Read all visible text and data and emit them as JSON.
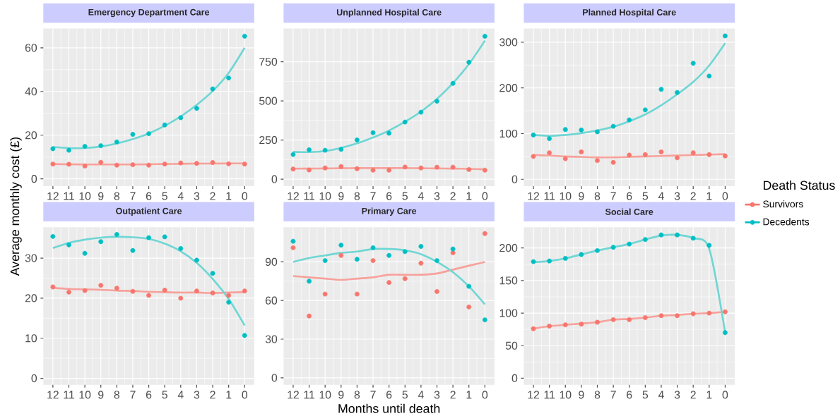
{
  "chart_data": [
    {
      "type": "scatter",
      "title": "Emergency Department Care",
      "ylabel": "Average monthly cost (£)",
      "categories": [
        "12",
        "11",
        "10",
        "9",
        "8",
        "7",
        "6",
        "5",
        "4",
        "3",
        "2",
        "1",
        "0"
      ],
      "ylim": [
        -3.3,
        68.8
      ],
      "yticks": [
        0,
        20,
        40,
        60
      ],
      "grid": true,
      "marker": "circle",
      "series": [
        {
          "color": "#f8766d",
          "values": [
            6.8,
            6.7,
            5.9,
            7.6,
            6.3,
            6.5,
            6.3,
            6.8,
            7.3,
            7.1,
            7.5,
            6.9,
            6.8
          ]
        },
        {
          "color": "#00bfc4",
          "values": [
            13.8,
            13.1,
            14.9,
            15.2,
            16.9,
            20.4,
            20.7,
            24.7,
            28.0,
            32.3,
            41.2,
            46.2,
            65.3
          ]
        },
        {
          "type": "line",
          "marker": "none",
          "color": "#f7a19b",
          "values": [
            6.8,
            6.7,
            6.6,
            6.6,
            6.6,
            6.6,
            6.7,
            6.8,
            6.9,
            7.0,
            7.0,
            7.1,
            7.1
          ]
        },
        {
          "type": "line",
          "marker": "none",
          "color": "#6fd6d4",
          "values": [
            14.6,
            14.1,
            14.1,
            14.8,
            16.2,
            18.2,
            20.8,
            24.3,
            28.6,
            33.9,
            40.2,
            48.5,
            60.0
          ]
        }
      ]
    },
    {
      "type": "scatter",
      "title": "Unplanned Hospital Care",
      "categories": [
        "12",
        "11",
        "10",
        "9",
        "8",
        "7",
        "6",
        "5",
        "4",
        "3",
        "2",
        "1",
        "0"
      ],
      "ylim": [
        -44,
        962
      ],
      "yticks": [
        0,
        250,
        500,
        750
      ],
      "grid": true,
      "marker": "circle",
      "series": [
        {
          "color": "#f8766d",
          "values": [
            65,
            59,
            72,
            81,
            67,
            58,
            58,
            78,
            72,
            77,
            77,
            62,
            58
          ]
        },
        {
          "color": "#00bfc4",
          "values": [
            158,
            188,
            185,
            191,
            251,
            297,
            294,
            365,
            428,
            498,
            612,
            747,
            913
          ]
        },
        {
          "type": "line",
          "marker": "none",
          "color": "#f7a19b",
          "values": [
            67,
            68,
            69,
            70,
            71,
            71,
            71,
            71,
            70,
            69,
            68,
            66,
            63
          ]
        },
        {
          "type": "line",
          "marker": "none",
          "color": "#6fd6d4",
          "values": [
            175,
            173,
            180,
            200,
            229,
            266,
            311,
            367,
            432,
            513,
            614,
            735,
            885
          ]
        }
      ]
    },
    {
      "type": "scatter",
      "title": "Planned Hospital Care",
      "legend_title": "Death Status",
      "legend": "right",
      "categories": [
        "12",
        "11",
        "10",
        "9",
        "8",
        "7",
        "6",
        "5",
        "4",
        "3",
        "2",
        "1",
        "0"
      ],
      "ylim": [
        -15,
        330
      ],
      "yticks": [
        0,
        100,
        200,
        300
      ],
      "grid": true,
      "marker": "circle",
      "series": [
        {
          "name": "Survivors",
          "color": "#f8766d",
          "values": [
            50,
            58,
            45,
            60,
            41,
            37,
            53,
            54,
            60,
            47,
            58,
            54,
            51
          ]
        },
        {
          "name": "Decedents",
          "color": "#00bfc4",
          "values": [
            97,
            89,
            109,
            108,
            104,
            116,
            130,
            152,
            197,
            190,
            254,
            226,
            314
          ]
        },
        {
          "type": "line",
          "marker": "none",
          "color": "#f7a19b",
          "values": [
            53,
            52,
            50,
            49,
            48,
            48,
            49,
            50,
            51,
            52,
            53,
            54,
            55
          ]
        },
        {
          "type": "line",
          "marker": "none",
          "color": "#6fd6d4",
          "values": [
            97,
            95,
            97,
            101,
            107,
            115,
            127,
            142,
            162,
            186,
            213,
            249,
            298
          ]
        }
      ]
    },
    {
      "type": "scatter",
      "title": "Outpatient Care",
      "categories": [
        "12",
        "11",
        "10",
        "9",
        "8",
        "7",
        "6",
        "5",
        "4",
        "3",
        "2",
        "1",
        "0"
      ],
      "ylim": [
        -1.6,
        37.7
      ],
      "yticks": [
        0,
        10,
        20,
        30
      ],
      "grid": true,
      "marker": "circle",
      "series": [
        {
          "color": "#f8766d",
          "values": [
            22.8,
            21.5,
            21.9,
            23.2,
            22.5,
            21.7,
            20.7,
            22.0,
            20.0,
            21.8,
            21.3,
            20.7,
            21.8
          ]
        },
        {
          "color": "#00bfc4",
          "values": [
            35.4,
            33.3,
            31.2,
            34.1,
            35.9,
            31.9,
            35.1,
            35.3,
            32.4,
            29.5,
            26.2,
            19.0,
            10.7
          ]
        },
        {
          "type": "line",
          "marker": "none",
          "color": "#f7a19b",
          "values": [
            22.6,
            22.3,
            22.2,
            22.1,
            21.9,
            21.8,
            21.6,
            21.5,
            21.4,
            21.4,
            21.3,
            21.4,
            21.5
          ]
        },
        {
          "type": "line",
          "marker": "none",
          "color": "#6fd6d4",
          "values": [
            32.5,
            33.8,
            34.6,
            35.1,
            35.3,
            35.2,
            34.8,
            33.6,
            31.7,
            28.8,
            24.8,
            19.8,
            13.2
          ]
        }
      ]
    },
    {
      "type": "scatter",
      "title": "Primary Care",
      "xlabel": "Months until death",
      "categories": [
        "12",
        "11",
        "10",
        "9",
        "8",
        "7",
        "6",
        "5",
        "4",
        "3",
        "2",
        "1",
        "0"
      ],
      "ylim": [
        -5.4,
        116.9
      ],
      "yticks": [
        0,
        30,
        60,
        90
      ],
      "grid": true,
      "marker": "circle",
      "series": [
        {
          "color": "#f8766d",
          "values": [
            101,
            48,
            65,
            95,
            65,
            91,
            74,
            77,
            89,
            67,
            97,
            55,
            112
          ]
        },
        {
          "color": "#00bfc4",
          "values": [
            106,
            75,
            91,
            103,
            92,
            101,
            95,
            98,
            102,
            91,
            100,
            71,
            45
          ]
        },
        {
          "type": "line",
          "marker": "none",
          "color": "#f7a19b",
          "values": [
            79,
            78,
            77,
            76,
            77,
            78,
            80,
            80,
            80,
            81,
            84,
            87,
            90
          ]
        },
        {
          "type": "line",
          "marker": "none",
          "color": "#6fd6d4",
          "values": [
            90,
            93,
            95,
            97,
            98,
            100,
            100,
            99,
            96,
            90,
            82,
            71,
            57
          ]
        }
      ]
    },
    {
      "type": "scatter",
      "title": "Social Care",
      "categories": [
        "12",
        "11",
        "10",
        "9",
        "8",
        "7",
        "6",
        "5",
        "4",
        "3",
        "2",
        "1",
        "0"
      ],
      "ylim": [
        -10,
        231.8
      ],
      "yticks": [
        0,
        50,
        100,
        150,
        200
      ],
      "grid": true,
      "marker": "circle",
      "series": [
        {
          "color": "#f8766d",
          "values": [
            76,
            80,
            82,
            83,
            86,
            90,
            90,
            93,
            96,
            96,
            99,
            100,
            102
          ]
        },
        {
          "color": "#00bfc4",
          "values": [
            179,
            180,
            184,
            190,
            196,
            201,
            206,
            213,
            220,
            220,
            215,
            204,
            70
          ]
        },
        {
          "type": "line",
          "marker": "none",
          "color": "#f7a19b",
          "values": [
            76,
            80,
            82,
            84,
            86,
            90,
            91,
            93,
            96,
            97,
            99,
            100,
            102
          ]
        },
        {
          "type": "line",
          "marker": "none",
          "color": "#6fd6d4",
          "values": [
            178,
            180,
            184,
            190,
            196,
            201,
            206,
            213,
            219,
            220,
            215,
            199,
            70
          ]
        }
      ]
    }
  ]
}
